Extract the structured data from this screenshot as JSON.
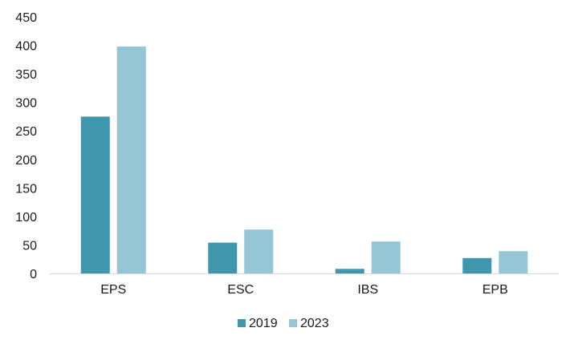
{
  "chart_data": {
    "type": "bar",
    "title": "",
    "xlabel": "",
    "ylabel": "",
    "categories": [
      "EPS",
      "ESC",
      "IBS",
      "EPB"
    ],
    "series": [
      {
        "name": "2019",
        "color": "#3f97ad",
        "values": [
          275,
          54,
          8,
          27
        ]
      },
      {
        "name": "2023",
        "color": "#95c6d5",
        "values": [
          398,
          77,
          56,
          39
        ]
      }
    ],
    "ylim": [
      0,
      450
    ],
    "yticks": [
      "0",
      "50",
      "100",
      "150",
      "200",
      "250",
      "300",
      "350",
      "400",
      "450"
    ],
    "grid": false,
    "legend": "bottom-center"
  }
}
